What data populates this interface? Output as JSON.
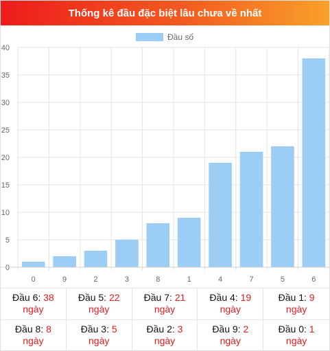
{
  "header": {
    "title": "Thống kê đầu đặc biệt lâu chưa về nhất"
  },
  "colors": {
    "bar": "#9ccdf5",
    "grid": "#e3e3e3",
    "accent_red": "#e31b1b"
  },
  "chart_data": {
    "type": "bar",
    "categories": [
      "0",
      "9",
      "2",
      "3",
      "8",
      "1",
      "4",
      "7",
      "5",
      "6"
    ],
    "series": [
      {
        "name": "Đầu số",
        "values": [
          1,
          2,
          3,
          5,
          8,
          9,
          19,
          21,
          22,
          38
        ]
      }
    ],
    "ylim": [
      0,
      40
    ],
    "yticks": [
      0,
      5,
      10,
      15,
      20,
      25,
      30,
      35,
      40
    ],
    "legend": "top-center",
    "grid": true
  },
  "table": {
    "unit": "ngày",
    "rows": [
      [
        {
          "label": "Đầu 6:",
          "value": "38"
        },
        {
          "label": "Đầu 5:",
          "value": "22"
        },
        {
          "label": "Đầu 7:",
          "value": "21"
        },
        {
          "label": "Đầu 4:",
          "value": "19"
        },
        {
          "label": "Đầu 1:",
          "value": "9"
        }
      ],
      [
        {
          "label": "Đầu 8:",
          "value": "8"
        },
        {
          "label": "Đầu 3:",
          "value": "5"
        },
        {
          "label": "Đầu 2:",
          "value": "3"
        },
        {
          "label": "Đầu 9:",
          "value": "2"
        },
        {
          "label": "Đầu 0:",
          "value": "1"
        }
      ]
    ]
  }
}
